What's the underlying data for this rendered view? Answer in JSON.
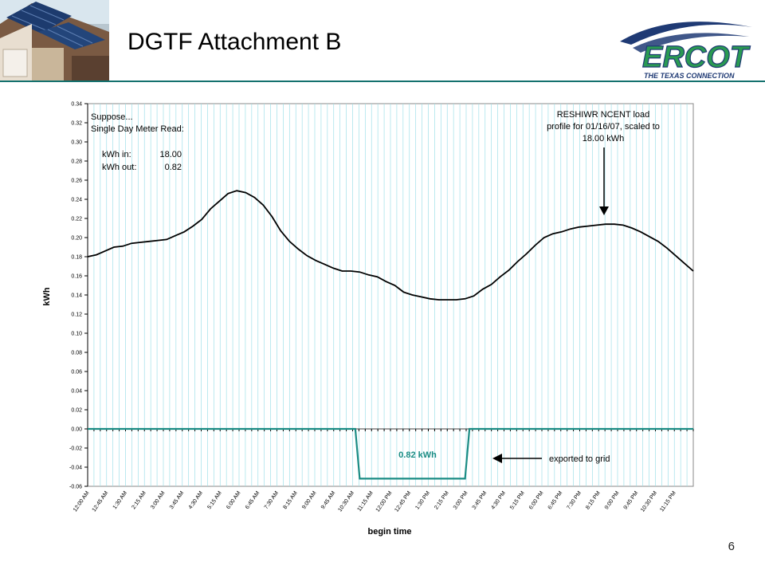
{
  "slide": {
    "title": "DGTF Attachment B",
    "page_number": "6"
  },
  "logo": {
    "name": "ERCOT",
    "tagline": "THE TEXAS CONNECTION"
  },
  "colors": {
    "accent": "#14716e",
    "load_line": "#000000",
    "export_line": "#1a8c84",
    "gridline": "#9fe0e8"
  },
  "chart_data": {
    "type": "line",
    "xlabel": "begin time",
    "ylabel": "kWh",
    "ylim": [
      -0.06,
      0.34
    ],
    "yticks": [
      "0.34",
      "0.32",
      "0.30",
      "0.28",
      "0.26",
      "0.24",
      "0.22",
      "0.20",
      "0.18",
      "0.16",
      "0.14",
      "0.12",
      "0.10",
      "0.08",
      "0.06",
      "0.04",
      "0.02",
      "0.00",
      "-0.02",
      "-0.04",
      "-0.06"
    ],
    "xtick_labels": [
      "12:00 AM",
      "12:45 AM",
      "1:30 AM",
      "2:15 AM",
      "3:00 AM",
      "3:45 AM",
      "4:30 AM",
      "5:15 AM",
      "6:00 AM",
      "6:45 AM",
      "7:30 AM",
      "8:15 AM",
      "9:00 AM",
      "9:45 AM",
      "10:30 AM",
      "11:15 AM",
      "12:00 PM",
      "12:45 PM",
      "1:30 PM",
      "2:15 PM",
      "3:00 PM",
      "3:45 PM",
      "4:30 PM",
      "5:15 PM",
      "6:00 PM",
      "6:45 PM",
      "7:30 PM",
      "8:15 PM",
      "9:00 PM",
      "9:45 PM",
      "10:30 PM",
      "11:15 PM"
    ],
    "x_interval_minutes": 15,
    "grid": true,
    "series": [
      {
        "role": "load",
        "anchor_points": [
          [
            0,
            0.18
          ],
          [
            2,
            0.182
          ],
          [
            4,
            0.186
          ],
          [
            6,
            0.19
          ],
          [
            8,
            0.191
          ],
          [
            10,
            0.194
          ],
          [
            12,
            0.195
          ],
          [
            14,
            0.196
          ],
          [
            16,
            0.197
          ],
          [
            18,
            0.198
          ],
          [
            20,
            0.202
          ],
          [
            22,
            0.206
          ],
          [
            24,
            0.212
          ],
          [
            26,
            0.219
          ],
          [
            28,
            0.23
          ],
          [
            30,
            0.238
          ],
          [
            32,
            0.246
          ],
          [
            34,
            0.249
          ],
          [
            36,
            0.247
          ],
          [
            38,
            0.242
          ],
          [
            40,
            0.234
          ],
          [
            42,
            0.222
          ],
          [
            44,
            0.207
          ],
          [
            46,
            0.196
          ],
          [
            48,
            0.188
          ],
          [
            50,
            0.181
          ],
          [
            52,
            0.176
          ],
          [
            54,
            0.172
          ],
          [
            56,
            0.168
          ],
          [
            58,
            0.165
          ],
          [
            60,
            0.165
          ],
          [
            62,
            0.164
          ],
          [
            64,
            0.161
          ],
          [
            66,
            0.159
          ],
          [
            68,
            0.154
          ],
          [
            70,
            0.15
          ],
          [
            72,
            0.143
          ],
          [
            74,
            0.14
          ],
          [
            76,
            0.138
          ],
          [
            78,
            0.136
          ],
          [
            80,
            0.135
          ],
          [
            82,
            0.135
          ],
          [
            84,
            0.135
          ],
          [
            86,
            0.136
          ],
          [
            88,
            0.139
          ],
          [
            90,
            0.146
          ],
          [
            92,
            0.151
          ],
          [
            94,
            0.159
          ],
          [
            96,
            0.166
          ],
          [
            98,
            0.175
          ],
          [
            100,
            0.183
          ],
          [
            102,
            0.192
          ],
          [
            104,
            0.2
          ],
          [
            106,
            0.204
          ],
          [
            108,
            0.206
          ],
          [
            110,
            0.209
          ],
          [
            112,
            0.211
          ],
          [
            114,
            0.212
          ],
          [
            116,
            0.213
          ],
          [
            118,
            0.214
          ],
          [
            120,
            0.214
          ],
          [
            122,
            0.213
          ],
          [
            124,
            0.21
          ],
          [
            126,
            0.206
          ],
          [
            128,
            0.201
          ],
          [
            130,
            0.196
          ],
          [
            132,
            0.189
          ],
          [
            134,
            0.181
          ],
          [
            136,
            0.173
          ],
          [
            138,
            0.165
          ]
        ]
      },
      {
        "role": "export",
        "anchor_points": [
          [
            0,
            0.0
          ],
          [
            61,
            0.0
          ],
          [
            62,
            -0.052
          ],
          [
            86,
            -0.052
          ],
          [
            87,
            0.0
          ],
          [
            138,
            0.0
          ]
        ]
      }
    ],
    "annotations": {
      "scenario_lines": [
        "Suppose...",
        "Single Day Meter Read:"
      ],
      "kwh_in_label": "kWh in:",
      "kwh_in_value": "18.00",
      "kwh_out_label": "kWh out:",
      "kwh_out_value": "0.82",
      "profile_note_lines": [
        "RESHIWR NCENT load",
        "profile for 01/16/07, scaled to",
        "18.00 kWh"
      ],
      "export_value_label": "0.82 kWh",
      "export_note": "exported to grid"
    }
  }
}
